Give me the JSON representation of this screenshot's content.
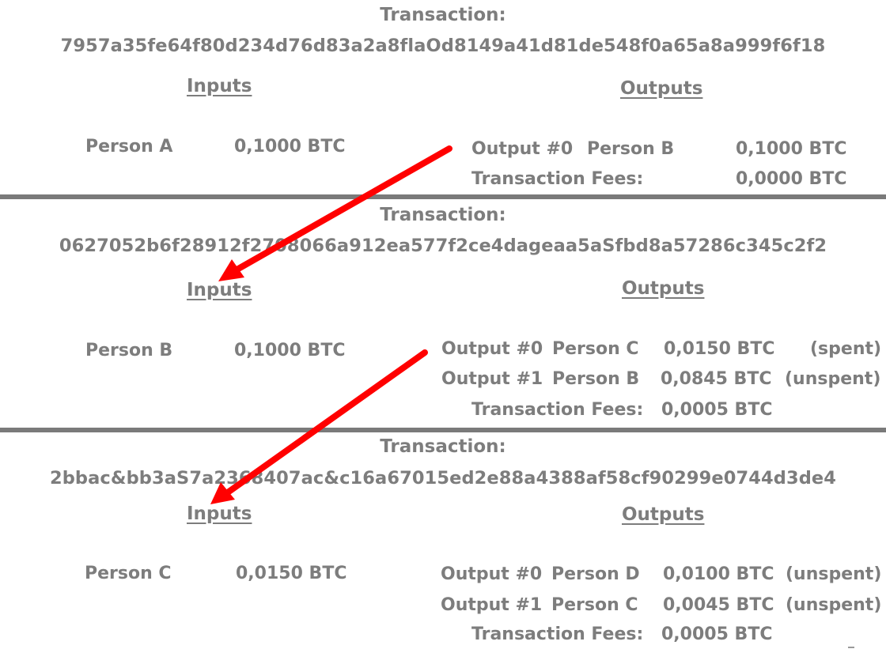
{
  "accent": "#ff0000",
  "text_color": "#7d7d7d",
  "divider_color": "#7a7a7a",
  "transactions": [
    {
      "label": "Transaction:",
      "hash": "7957a35fe64f80d234d76d83a2a8flaOd8149a41d81de548f0a65a8a999f6f18",
      "inputs_heading": "Inputs",
      "outputs_heading": "Outputs",
      "input": {
        "person": "Person A",
        "amount": "0,1000 BTC"
      },
      "outputs": [
        {
          "label": "Output #0",
          "person": "Person B",
          "amount": "0,1000 BTC",
          "status": ""
        }
      ],
      "fees": {
        "label": "Transaction Fees:",
        "amount": "0,0000 BTC"
      }
    },
    {
      "label": "Transaction:",
      "hash": "0627052b6f28912f2708066a912ea577f2ce4dageaa5aSfbd8a57286c345c2f2",
      "inputs_heading": "Inputs",
      "outputs_heading": "Outputs",
      "input": {
        "person": "Person B",
        "amount": "0,1000 BTC"
      },
      "outputs": [
        {
          "label": "Output #0",
          "person": "Person C",
          "amount": "0,0150 BTC",
          "status": "(spent)"
        },
        {
          "label": "Output #1",
          "person": "Person B",
          "amount": "0,0845 BTC",
          "status": "(unspent)"
        }
      ],
      "fees": {
        "label": "Transaction Fees:",
        "amount": "0,0005 BTC"
      }
    },
    {
      "label": "Transaction:",
      "hash": "2bbac&bb3aS7a2368407ac&c16a67015ed2e88a4388af58cf90299e0744d3de4",
      "inputs_heading": "Inputs",
      "outputs_heading": "Outputs",
      "input": {
        "person": "Person C",
        "amount": "0,0150 BTC"
      },
      "outputs": [
        {
          "label": "Output #0",
          "person": "Person D",
          "amount": "0,0100 BTC",
          "status": "(unspent)"
        },
        {
          "label": "Output #1",
          "person": "Person C",
          "amount": "0,0045 BTC",
          "status": "(unspent)"
        }
      ],
      "fees": {
        "label": "Transaction Fees:",
        "amount": "0,0005 BTC"
      }
    }
  ]
}
